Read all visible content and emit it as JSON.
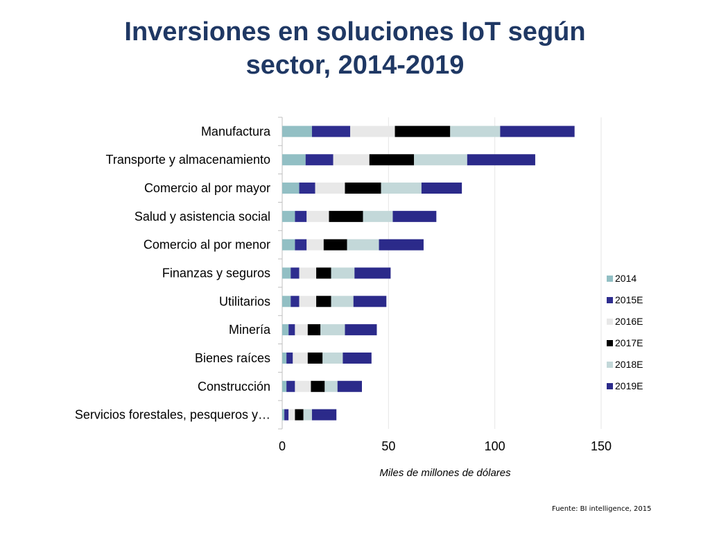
{
  "title": {
    "line1": "Inversiones en soluciones IoT según",
    "line2": "sector, 2014-2019"
  },
  "source": "Fuente: BI intelligence, 2015",
  "colors": {
    "title": "#1f3864",
    "series": [
      "#92bfc4",
      "#2e2d8f",
      "#e8e8e8",
      "#000000",
      "#c3d8d9",
      "#2b2a8a"
    ]
  },
  "chart_data": {
    "type": "bar",
    "orientation": "horizontal",
    "stacked": true,
    "categories": [
      "Manufactura",
      "Transporte y almacenamiento",
      "Comercio al por mayor",
      "Salud y asistencia social",
      "Comercio al por menor",
      "Finanzas y seguros",
      "Utilitarios",
      "Minería",
      "Bienes raíces",
      "Construcción",
      "Servicios forestales, pesqueros y…"
    ],
    "series": [
      {
        "name": "2014",
        "values": [
          14,
          11,
          8,
          6,
          6,
          4,
          4,
          3,
          2,
          2,
          1
        ]
      },
      {
        "name": "2015E",
        "values": [
          18,
          13,
          7.5,
          5.5,
          5.5,
          4,
          4,
          3,
          3,
          4,
          2
        ]
      },
      {
        "name": "2016E",
        "values": [
          21,
          17,
          14,
          10.5,
          8,
          8,
          8,
          6,
          7,
          7.5,
          3
        ]
      },
      {
        "name": "2017E",
        "values": [
          26,
          21,
          17,
          16,
          11,
          7,
          7,
          6,
          7,
          6.5,
          4
        ]
      },
      {
        "name": "2018E",
        "values": [
          23.5,
          25,
          19,
          14,
          15,
          11,
          10.5,
          11.5,
          9.5,
          6,
          4
        ]
      },
      {
        "name": "2019E",
        "values": [
          35,
          32,
          19,
          20.5,
          21,
          17,
          15.5,
          15,
          13.5,
          11.5,
          11.5
        ]
      }
    ],
    "xlabel": "Miles de millones de dólares",
    "ylabel": "",
    "xlim": [
      0,
      150
    ],
    "xticks": [
      0,
      50,
      100,
      150
    ],
    "grid": true,
    "legend": "right"
  }
}
